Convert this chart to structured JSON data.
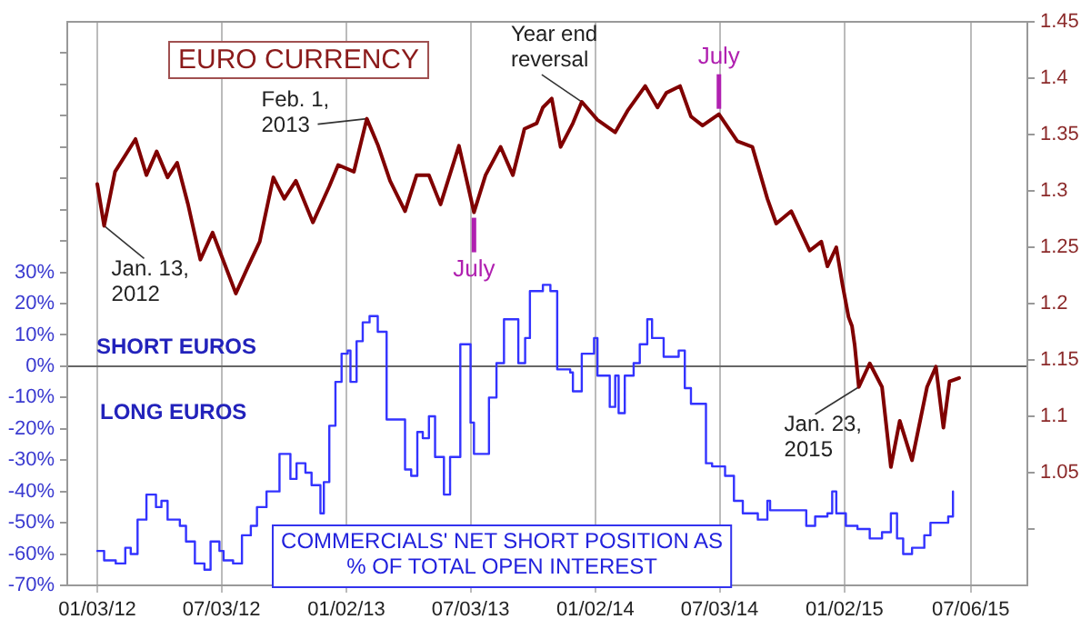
{
  "chart_data": {
    "type": "line",
    "title": "EURO CURRENCY",
    "marker": "none",
    "grid": "x",
    "xlim": [
      "2011-11-20",
      "2015-09-27"
    ],
    "xticks": [
      {
        "value": "2012-01-03",
        "label": "01/03/12"
      },
      {
        "value": "2012-07-03",
        "label": "07/03/12"
      },
      {
        "value": "2013-01-02",
        "label": "01/02/13"
      },
      {
        "value": "2013-07-03",
        "label": "07/03/13"
      },
      {
        "value": "2014-01-02",
        "label": "01/02/14"
      },
      {
        "value": "2014-07-03",
        "label": "07/03/14"
      },
      {
        "value": "2015-01-02",
        "label": "01/02/15"
      },
      {
        "value": "2015-07-06",
        "label": "07/06/15"
      }
    ],
    "y2lim": [
      -70,
      110
    ],
    "y2ticks": [
      {
        "value": -70,
        "label": "-70%"
      },
      {
        "value": -60,
        "label": "-60%"
      },
      {
        "value": -50,
        "label": "-50%"
      },
      {
        "value": -40,
        "label": "-40%"
      },
      {
        "value": -30,
        "label": "-30%"
      },
      {
        "value": -20,
        "label": "-20%"
      },
      {
        "value": -10,
        "label": "-10%"
      },
      {
        "value": 0,
        "label": "0%"
      },
      {
        "value": 10,
        "label": "10%"
      },
      {
        "value": 20,
        "label": "20%"
      },
      {
        "value": 30,
        "label": "30%"
      },
      {
        "value": 40,
        "label": null
      },
      {
        "value": 50,
        "label": null
      },
      {
        "value": 60,
        "label": null
      },
      {
        "value": 70,
        "label": null
      },
      {
        "value": 80,
        "label": null
      },
      {
        "value": 90,
        "label": null
      },
      {
        "value": 100,
        "label": null
      }
    ],
    "ylim": [
      0.95,
      1.45
    ],
    "yticks": [
      {
        "value": 1,
        "label": null
      },
      1.05,
      1.1,
      1.15,
      1.2,
      1.25,
      1.3,
      1.35,
      1.4,
      1.45
    ],
    "ref_lines": [
      {
        "axis": "y2",
        "value": 0,
        "color": "#666666"
      }
    ],
    "annotations": [
      {
        "text": "Jan. 13, 2012",
        "x": "2012-01-13",
        "y": 1.269
      },
      {
        "text": "Feb. 1, 2013",
        "x": "2013-02-01",
        "y": 1.364
      },
      {
        "text": "Year end reversal",
        "x": "2013-12-13",
        "y": 1.379
      },
      {
        "text": "July",
        "x": "2013-07-08",
        "y": 1.281
      },
      {
        "text": "July",
        "x": "2014-07-02",
        "y": 1.368
      },
      {
        "text": "Jan. 23, 2015",
        "x": "2015-01-23",
        "y": 1.126
      },
      "SHORT EUROS",
      "LONG EUROS",
      "COMMERCIALS' NET SHORT POSITION AS % OF TOTAL OPEN INTEREST"
    ],
    "series": [
      {
        "type": "line",
        "axis": "y",
        "color": "#800000",
        "x": [
          "2012-01-03",
          "2012-01-13",
          "2012-01-29",
          "2012-02-28",
          "2012-03-15",
          "2012-03-30",
          "2012-04-15",
          "2012-04-29",
          "2012-05-15",
          "2012-06-02",
          "2012-06-20",
          "2012-07-02",
          "2012-07-24",
          "2012-08-11",
          "2012-08-28",
          "2012-09-17",
          "2012-10-03",
          "2012-10-20",
          "2012-11-14",
          "2012-12-08",
          "2012-12-21",
          "2013-01-13",
          "2013-02-01",
          "2013-02-17",
          "2013-03-07",
          "2013-03-29",
          "2013-04-15",
          "2013-05-03",
          "2013-05-20",
          "2013-06-16",
          "2013-07-08",
          "2013-07-25",
          "2013-08-16",
          "2013-09-03",
          "2013-09-20",
          "2013-10-08",
          "2013-10-17",
          "2013-10-30",
          "2013-11-12",
          "2013-11-30",
          "2013-12-13",
          "2014-01-05",
          "2014-01-31",
          "2014-02-18",
          "2014-03-16",
          "2014-04-03",
          "2014-04-16",
          "2014-05-06",
          "2014-05-22",
          "2014-06-08",
          "2014-07-02",
          "2014-07-29",
          "2014-08-20",
          "2014-09-11",
          "2014-09-24",
          "2014-10-16",
          "2014-11-12",
          "2014-11-29",
          "2014-12-08",
          "2014-12-21",
          "2014-12-30",
          "2015-01-08",
          "2015-01-13",
          "2015-01-17",
          "2015-01-23",
          "2015-02-08",
          "2015-02-26",
          "2015-03-11",
          "2015-03-24",
          "2015-04-11",
          "2015-05-03",
          "2015-05-16",
          "2015-05-27",
          "2015-06-05",
          "2015-06-19"
        ],
        "values": [
          1.306,
          1.269,
          1.317,
          1.346,
          1.314,
          1.335,
          1.312,
          1.325,
          1.288,
          1.239,
          1.263,
          1.244,
          1.209,
          1.233,
          1.255,
          1.312,
          1.293,
          1.309,
          1.272,
          1.304,
          1.323,
          1.317,
          1.364,
          1.341,
          1.309,
          1.282,
          1.314,
          1.314,
          1.288,
          1.34,
          1.281,
          1.314,
          1.339,
          1.314,
          1.355,
          1.36,
          1.374,
          1.382,
          1.339,
          1.36,
          1.379,
          1.363,
          1.352,
          1.371,
          1.393,
          1.374,
          1.387,
          1.393,
          1.366,
          1.358,
          1.368,
          1.344,
          1.339,
          1.293,
          1.271,
          1.282,
          1.247,
          1.255,
          1.233,
          1.25,
          1.217,
          1.188,
          1.18,
          1.163,
          1.126,
          1.147,
          1.126,
          1.055,
          1.096,
          1.061,
          1.126,
          1.144,
          1.09,
          1.131,
          1.134
        ]
      },
      {
        "type": "step",
        "axis": "y2",
        "color": "#3333ff",
        "x": [
          "2012-01-03",
          "2012-01-13",
          "2012-01-30",
          "2012-02-13",
          "2012-02-21",
          "2012-03-02",
          "2012-03-15",
          "2012-03-29",
          "2012-04-06",
          "2012-04-15",
          "2012-05-03",
          "2012-05-12",
          "2012-05-25",
          "2012-06-08",
          "2012-06-17",
          "2012-06-30",
          "2012-07-06",
          "2012-07-20",
          "2012-08-02",
          "2012-08-15",
          "2012-08-24",
          "2012-09-07",
          "2012-09-26",
          "2012-10-08",
          "2012-10-12",
          "2012-10-21",
          "2012-11-03",
          "2012-11-12",
          "2012-11-25",
          "2012-11-30",
          "2012-12-08",
          "2012-12-17",
          "2012-12-26",
          "2013-01-04",
          "2013-01-08",
          "2013-01-17",
          "2013-01-26",
          "2013-02-05",
          "2013-02-17",
          "2013-03-02",
          "2013-03-15",
          "2013-03-29",
          "2013-04-07",
          "2013-04-16",
          "2013-04-24",
          "2013-05-03",
          "2013-05-12",
          "2013-05-25",
          "2013-06-03",
          "2013-06-18",
          "2013-06-29",
          "2013-07-03",
          "2013-07-08",
          "2013-07-21",
          "2013-07-30",
          "2013-08-10",
          "2013-08-21",
          "2013-09-02",
          "2013-09-11",
          "2013-09-21",
          "2013-09-28",
          "2013-10-17",
          "2013-10-28",
          "2013-11-07",
          "2013-11-26",
          "2013-11-30",
          "2013-12-13",
          "2013-12-31",
          "2014-01-05",
          "2014-01-18",
          "2014-01-23",
          "2014-01-31",
          "2014-02-05",
          "2014-02-14",
          "2014-02-27",
          "2014-03-08",
          "2014-03-19",
          "2014-03-26",
          "2014-04-12",
          "2014-04-30",
          "2014-05-04",
          "2014-05-13",
          "2014-05-22",
          "2014-06-13",
          "2014-06-22",
          "2014-07-11",
          "2014-07-24",
          "2014-08-06",
          "2014-08-28",
          "2014-09-11",
          "2014-09-15",
          "2014-10-07",
          "2014-11-07",
          "2014-11-20",
          "2014-12-08",
          "2014-12-15",
          "2014-12-21",
          "2015-01-04",
          "2015-01-21",
          "2015-02-08",
          "2015-02-26",
          "2015-03-11",
          "2015-03-20",
          "2015-03-29",
          "2015-04-11",
          "2015-04-29",
          "2015-05-08",
          "2015-06-03",
          "2015-06-10"
        ],
        "values": [
          -59,
          -62,
          -63,
          -58,
          -60,
          -49,
          -41,
          -45,
          -43,
          -49,
          -51,
          -56,
          -63,
          -65,
          -56,
          -59,
          -62,
          -63,
          -54,
          -51,
          -45,
          -40,
          -28,
          -28,
          -36,
          -31,
          -34,
          -38,
          -47,
          -37,
          -19,
          -5,
          4,
          5,
          -5,
          8,
          14,
          16,
          11,
          -17,
          -17,
          -33,
          -35,
          -21,
          -23,
          -16,
          -29,
          -41,
          -29,
          7,
          7,
          -18,
          -28,
          -28,
          -10,
          1,
          15,
          15,
          1,
          9,
          24,
          26,
          24,
          -1,
          -2,
          -8,
          4,
          9,
          -3,
          -3,
          -13,
          -3,
          -15,
          -3,
          1,
          7,
          15,
          9,
          3,
          3,
          5,
          -7,
          -12,
          -31,
          -32,
          -35,
          -43,
          -47,
          -49,
          -43,
          -46,
          -46,
          -51,
          -48,
          -47,
          -40,
          -47,
          -51,
          -52,
          -55,
          -53,
          -47,
          -55,
          -60,
          -58,
          -54,
          -50,
          -48,
          -40
        ]
      }
    ]
  }
}
